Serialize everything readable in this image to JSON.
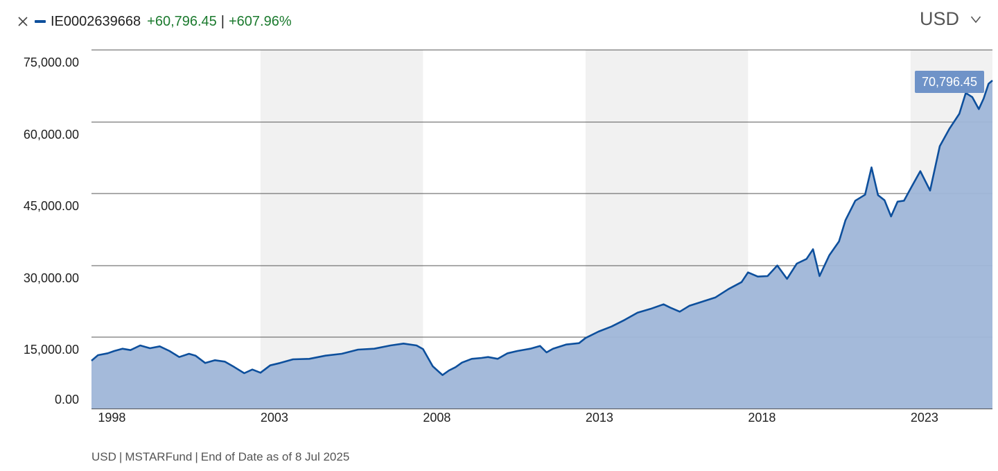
{
  "legend": {
    "symbol": "IE0002639668",
    "change_value": "+60,796.45",
    "separator": "|",
    "change_percent": "+607.96%"
  },
  "currency_selector": {
    "selected": "USD"
  },
  "footer": {
    "currency": "USD",
    "source": "MSTARFund",
    "as_of": "End of Date as of 8 Jul 2025"
  },
  "colors": {
    "line": "#0d4f9c",
    "area": "#9fb6d8",
    "band": "#f1f1f1",
    "tooltip_bg": "#6f93c8",
    "positive": "#1b7a2e",
    "gridline": "#555555"
  },
  "chart_data": {
    "type": "area",
    "title": "",
    "xlabel": "",
    "ylabel": "",
    "y_tick_labels": [
      "0.00",
      "15,000.00",
      "30,000.00",
      "45,000.00",
      "60,000.00",
      "75,000.00"
    ],
    "y_ticks": [
      0,
      15000,
      30000,
      45000,
      60000,
      75000
    ],
    "ylim": [
      0,
      75000
    ],
    "x_tick_labels": [
      "1998",
      "2003",
      "2008",
      "2013",
      "2018",
      "2023"
    ],
    "x_ticks": [
      1998,
      2003,
      2008,
      2013,
      2018,
      2023
    ],
    "xlim": [
      1997.8,
      2025.52
    ],
    "grid": "horizontal",
    "shaded_year_bands": [
      [
        2003,
        2008
      ],
      [
        2013,
        2018
      ],
      [
        2023,
        2025.52
      ]
    ],
    "last_value_label": "70,796.45",
    "series": [
      {
        "x": [
          1997.8,
          1998.0,
          1998.3,
          1998.5,
          1998.75,
          1999.0,
          1999.3,
          1999.6,
          1999.9,
          2000.2,
          2000.5,
          2000.8,
          2001.0,
          2001.3,
          2001.6,
          2001.9,
          2002.2,
          2002.5,
          2002.75,
          2003.0,
          2003.3,
          2003.6,
          2004.0,
          2004.5,
          2005.0,
          2005.5,
          2006.0,
          2006.5,
          2007.0,
          2007.4,
          2007.8,
          2008.0,
          2008.3,
          2008.6,
          2008.8,
          2009.0,
          2009.2,
          2009.5,
          2009.8,
          2010.0,
          2010.3,
          2010.6,
          2010.9,
          2011.3,
          2011.6,
          2011.8,
          2012.0,
          2012.4,
          2012.8,
          2013.0,
          2013.4,
          2013.8,
          2014.2,
          2014.6,
          2015.0,
          2015.4,
          2015.6,
          2015.9,
          2016.2,
          2016.6,
          2017.0,
          2017.4,
          2017.8,
          2018.0,
          2018.3,
          2018.6,
          2018.9,
          2019.2,
          2019.5,
          2019.8,
          2020.0,
          2020.2,
          2020.5,
          2020.8,
          2021.0,
          2021.3,
          2021.6,
          2021.8,
          2022.0,
          2022.2,
          2022.4,
          2022.6,
          2022.8,
          2023.0,
          2023.3,
          2023.6,
          2023.9,
          2024.2,
          2024.5,
          2024.7,
          2024.9,
          2025.1,
          2025.25,
          2025.4,
          2025.52
        ],
        "values": [
          10200,
          11400,
          11800,
          12300,
          12800,
          12500,
          13500,
          12900,
          13300,
          12300,
          11000,
          11700,
          11300,
          9700,
          10300,
          10000,
          8800,
          7500,
          8300,
          7600,
          9200,
          9700,
          10500,
          10600,
          11300,
          11700,
          12600,
          12800,
          13500,
          13900,
          13500,
          12700,
          9000,
          7100,
          8100,
          8800,
          9800,
          10600,
          10800,
          11000,
          10600,
          11800,
          12300,
          12800,
          13400,
          12000,
          12800,
          13700,
          14000,
          15100,
          16500,
          17600,
          19000,
          20600,
          21400,
          22400,
          21700,
          20800,
          22100,
          23000,
          23900,
          25700,
          27200,
          29300,
          28400,
          28500,
          30800,
          27900,
          31200,
          32200,
          34300,
          28500,
          33000,
          36000,
          40600,
          44800,
          46100,
          52000,
          46000,
          44900,
          41400,
          44600,
          44800,
          47400,
          51200,
          47000,
          56600,
          60400,
          63600,
          68100,
          67200,
          64600,
          66900,
          70100,
          70800
        ]
      }
    ]
  }
}
